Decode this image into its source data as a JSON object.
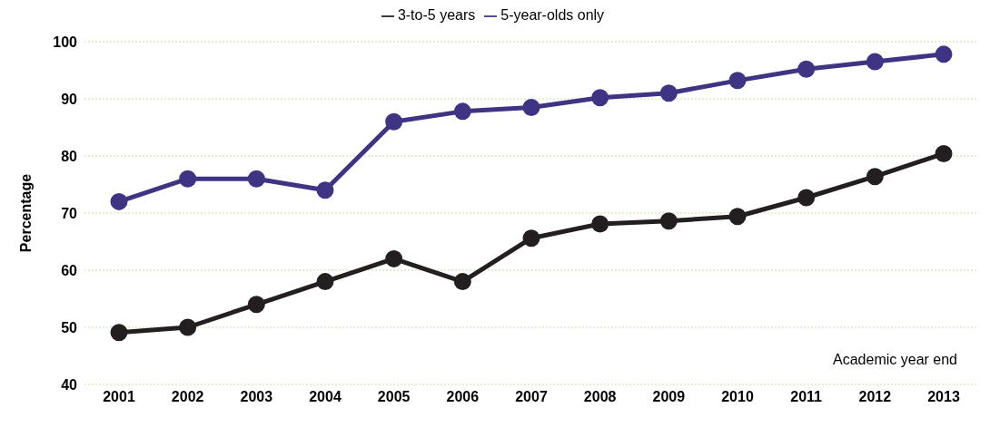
{
  "chart_data": {
    "type": "line",
    "ylabel": "Percentage",
    "annotations": [
      "Academic year end"
    ],
    "categories": [
      "2001",
      "2002",
      "2003",
      "2004",
      "2005",
      "2006",
      "2007",
      "2008",
      "2009",
      "2010",
      "2011",
      "2012",
      "2013"
    ],
    "series": [
      {
        "name": "3-to-5 years",
        "color": "#231f20",
        "values": [
          49.1,
          50,
          54,
          58,
          62,
          58,
          65.6,
          68.1,
          68.6,
          69.4,
          72.7,
          76.4,
          80.4
        ]
      },
      {
        "name": "5-year-olds only",
        "color": "#3f3483",
        "values": [
          72,
          76,
          76,
          74,
          86,
          87.8,
          88.5,
          90.2,
          91,
          93.2,
          95.2,
          96.5,
          97.8
        ]
      }
    ],
    "ylim": [
      40,
      100
    ],
    "yticks": [
      40,
      50,
      60,
      70,
      80,
      90,
      100
    ],
    "grid": "y",
    "legend": "top",
    "marker": "circle",
    "line_style": "solid"
  }
}
